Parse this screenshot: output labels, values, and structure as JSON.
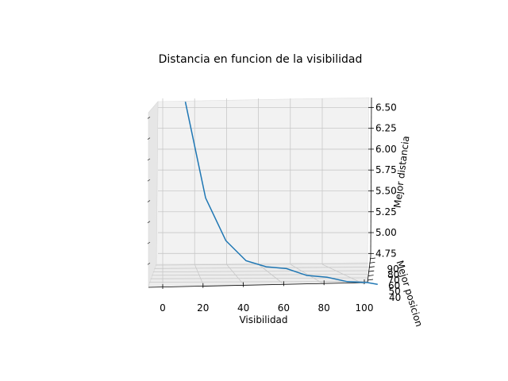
{
  "chart_data": {
    "type": "line",
    "projection": "3d",
    "title": "Distancia en funcion de la visibilidad",
    "xlabel": "Visibilidad",
    "ylabel": "Mejor posicion",
    "zlabel": "Mejor distancia",
    "xlim": [
      -5,
      105
    ],
    "zlim": [
      4.62,
      6.57
    ],
    "x_ticks": [
      "0",
      "20",
      "40",
      "60",
      "80",
      "100"
    ],
    "y_ticks": [
      "40",
      "50",
      "60",
      "70",
      "80",
      "90"
    ],
    "z_ticks": [
      "4.75",
      "5.00",
      "5.25",
      "5.50",
      "5.75",
      "6.00",
      "6.25",
      "6.50"
    ],
    "grid": true,
    "color": "#1f77b4",
    "series": [
      {
        "x": [
          5,
          15,
          25,
          35,
          45,
          55,
          65,
          75,
          85,
          95,
          100
        ],
        "z": [
          6.57,
          5.42,
          4.91,
          4.67,
          4.6,
          4.58,
          4.5,
          4.48,
          4.43,
          4.42,
          4.4
        ]
      }
    ]
  }
}
